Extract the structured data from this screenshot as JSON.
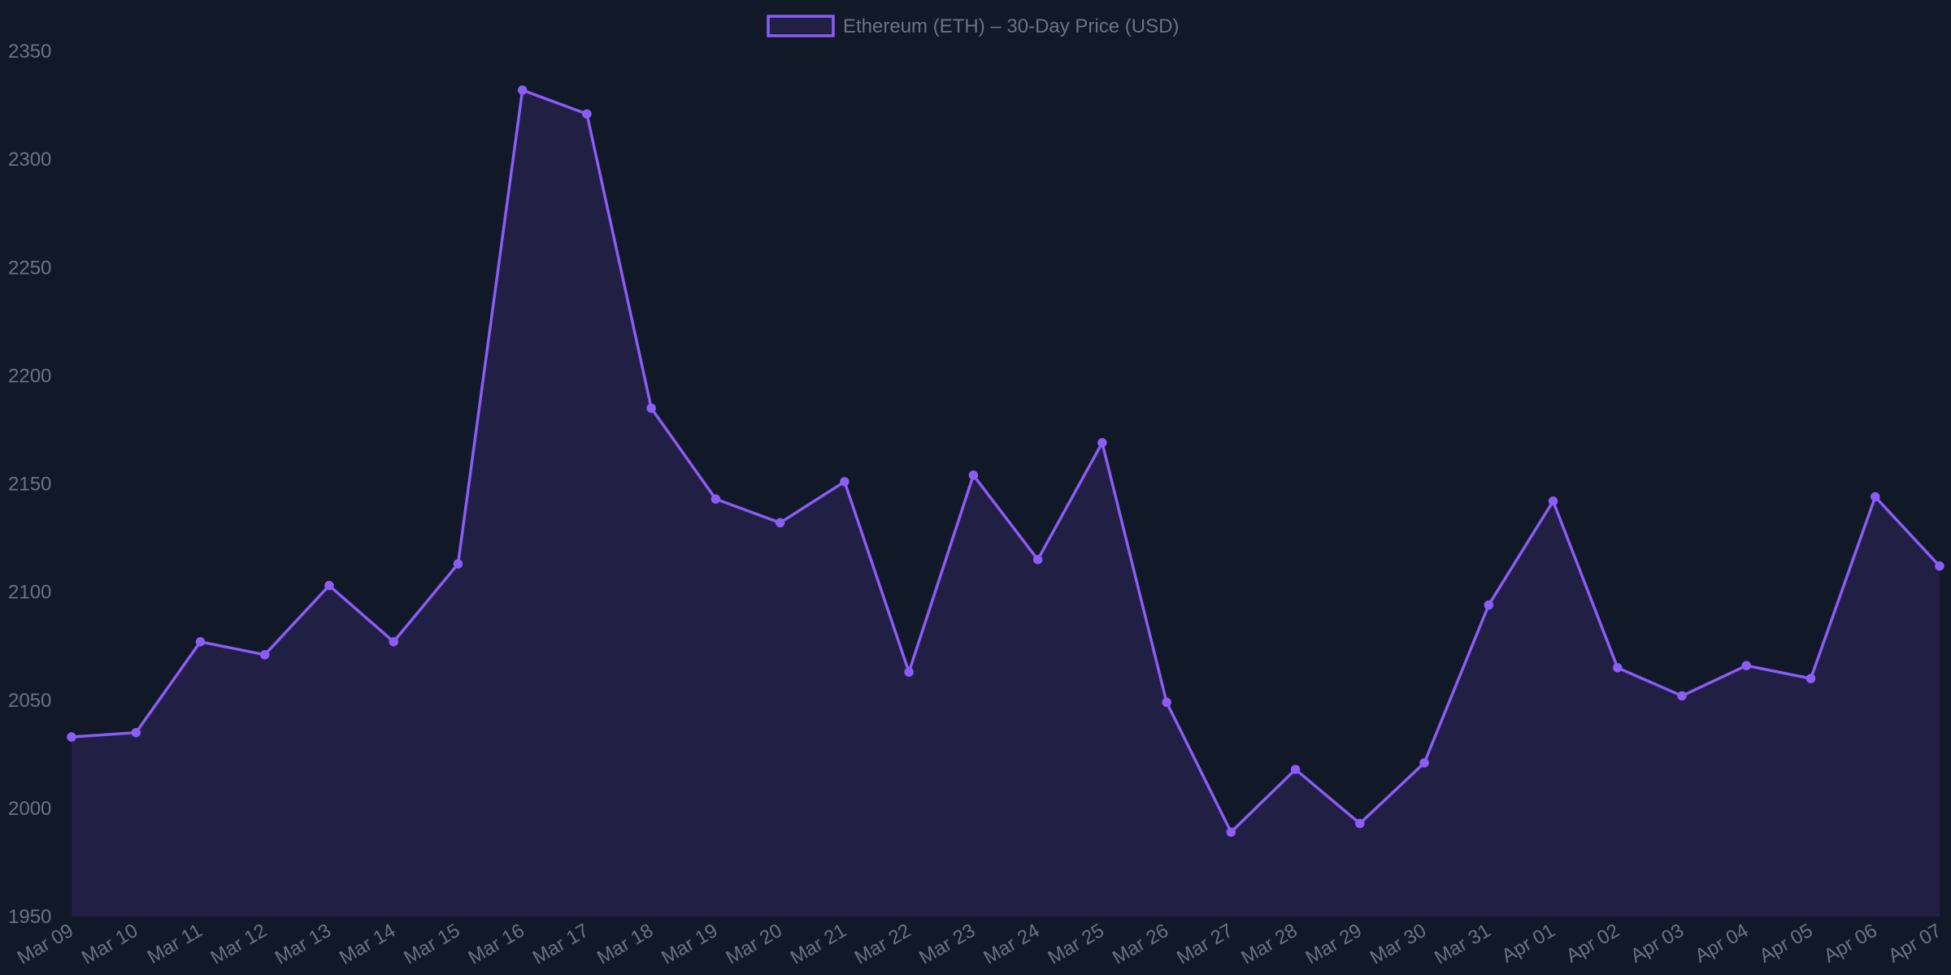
{
  "chart_data": {
    "type": "area",
    "categories": [
      "Mar 09",
      "Mar 10",
      "Mar 11",
      "Mar 12",
      "Mar 13",
      "Mar 14",
      "Mar 15",
      "Mar 16",
      "Mar 17",
      "Mar 18",
      "Mar 19",
      "Mar 20",
      "Mar 21",
      "Mar 22",
      "Mar 23",
      "Mar 24",
      "Mar 25",
      "Mar 26",
      "Mar 27",
      "Mar 28",
      "Mar 29",
      "Mar 30",
      "Mar 31",
      "Apr 01",
      "Apr 02",
      "Apr 03",
      "Apr 04",
      "Apr 05",
      "Apr 06",
      "Apr 07"
    ],
    "series": [
      {
        "name": "Ethereum (ETH) – 30-Day Price (USD)",
        "values": [
          2033,
          2035,
          2077,
          2071,
          2103,
          2077,
          2113,
          2332,
          2321,
          2185,
          2143,
          2132,
          2151,
          2063,
          2154,
          2115,
          2169,
          2049,
          1989,
          2018,
          1993,
          2021,
          2094,
          2142,
          2065,
          2052,
          2066,
          2060,
          2144,
          2112
        ]
      }
    ],
    "ylim": [
      1950,
      2350
    ],
    "yticks": [
      1950,
      2000,
      2050,
      2100,
      2150,
      2200,
      2250,
      2300,
      2350
    ],
    "title": "",
    "xlabel": "",
    "ylabel": "",
    "grid": false,
    "legend_position": "top-center",
    "colors": {
      "background": "#111827",
      "line": "#8b5cf6",
      "fill": "#221f44",
      "text": "#6b7280"
    }
  }
}
